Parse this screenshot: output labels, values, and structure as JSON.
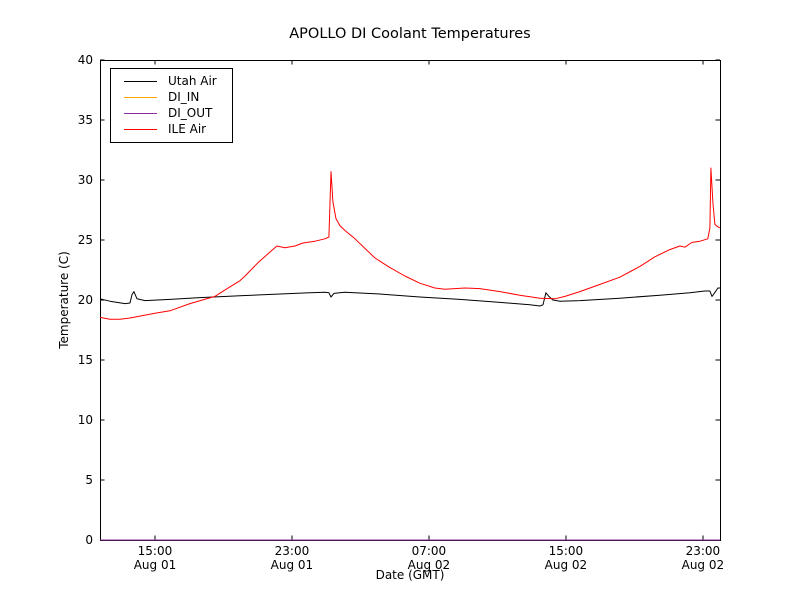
{
  "chart_data": {
    "type": "line",
    "title": "APOLLO DI Coolant Temperatures",
    "xlabel": "Date (GMT)",
    "ylabel": "Temperature (C)",
    "x_unit": "hours since Aug 01 00:00 GMT",
    "xlim": [
      11.79,
      48.0
    ],
    "ylim": [
      0,
      40
    ],
    "grid": false,
    "legend_position": "upper left",
    "yticks": [
      0,
      5,
      10,
      15,
      20,
      25,
      30,
      35,
      40
    ],
    "xticks": [
      {
        "value": 15,
        "label": "15:00\nAug 01"
      },
      {
        "value": 23,
        "label": "23:00\nAug 01"
      },
      {
        "value": 31,
        "label": "07:00\nAug 02"
      },
      {
        "value": 39,
        "label": "15:00\nAug 02"
      },
      {
        "value": 47,
        "label": "23:00\nAug 02"
      }
    ],
    "series": [
      {
        "name": "Utah Air",
        "color": "#000000",
        "points": [
          [
            11.79,
            20.1
          ],
          [
            12.37,
            19.9
          ],
          [
            13.25,
            19.7
          ],
          [
            13.54,
            19.75
          ],
          [
            13.66,
            20.45
          ],
          [
            13.77,
            20.7
          ],
          [
            13.95,
            20.1
          ],
          [
            14.42,
            19.95
          ],
          [
            15.88,
            20.05
          ],
          [
            17.63,
            20.2
          ],
          [
            19.96,
            20.35
          ],
          [
            22.3,
            20.5
          ],
          [
            24.05,
            20.6
          ],
          [
            24.93,
            20.65
          ],
          [
            25.16,
            20.6
          ],
          [
            25.28,
            20.25
          ],
          [
            25.45,
            20.55
          ],
          [
            26.09,
            20.65
          ],
          [
            28.14,
            20.5
          ],
          [
            30.47,
            20.25
          ],
          [
            32.81,
            20.05
          ],
          [
            35.15,
            19.8
          ],
          [
            36.9,
            19.6
          ],
          [
            37.48,
            19.5
          ],
          [
            37.66,
            19.6
          ],
          [
            37.83,
            20.6
          ],
          [
            38.01,
            20.3
          ],
          [
            38.24,
            20.0
          ],
          [
            38.66,
            19.9
          ],
          [
            39.82,
            19.95
          ],
          [
            42.15,
            20.15
          ],
          [
            44.49,
            20.4
          ],
          [
            46.25,
            20.6
          ],
          [
            47.12,
            20.75
          ],
          [
            47.41,
            20.75
          ],
          [
            47.53,
            20.3
          ],
          [
            47.64,
            20.5
          ],
          [
            47.88,
            21.0
          ],
          [
            48.0,
            21.0
          ]
        ]
      },
      {
        "name": "DI_IN",
        "color": "#ffa500",
        "points": [
          [
            11.79,
            0.0
          ],
          [
            48.0,
            0.0
          ]
        ]
      },
      {
        "name": "DI_OUT",
        "color": "#8a2d9e",
        "points": [
          [
            11.79,
            0.0
          ],
          [
            48.0,
            0.0
          ]
        ]
      },
      {
        "name": "ILE Air",
        "color": "#ff0000",
        "points": [
          [
            11.79,
            18.55
          ],
          [
            12.37,
            18.4
          ],
          [
            12.96,
            18.4
          ],
          [
            13.54,
            18.5
          ],
          [
            15.0,
            18.9
          ],
          [
            15.88,
            19.1
          ],
          [
            17.04,
            19.7
          ],
          [
            18.5,
            20.3
          ],
          [
            19.38,
            21.1
          ],
          [
            19.96,
            21.6
          ],
          [
            20.26,
            22.0
          ],
          [
            21.01,
            23.1
          ],
          [
            21.72,
            24.0
          ],
          [
            22.12,
            24.5
          ],
          [
            22.59,
            24.35
          ],
          [
            23.18,
            24.5
          ],
          [
            23.64,
            24.75
          ],
          [
            24.34,
            24.9
          ],
          [
            24.93,
            25.1
          ],
          [
            25.16,
            25.25
          ],
          [
            25.28,
            30.7
          ],
          [
            25.39,
            28.2
          ],
          [
            25.57,
            26.8
          ],
          [
            25.8,
            26.2
          ],
          [
            26.09,
            25.8
          ],
          [
            26.68,
            25.1
          ],
          [
            27.26,
            24.3
          ],
          [
            27.85,
            23.5
          ],
          [
            28.72,
            22.7
          ],
          [
            29.6,
            22.0
          ],
          [
            30.47,
            21.4
          ],
          [
            31.35,
            21.0
          ],
          [
            31.93,
            20.9
          ],
          [
            33.1,
            21.0
          ],
          [
            33.98,
            20.95
          ],
          [
            35.15,
            20.7
          ],
          [
            36.31,
            20.4
          ],
          [
            37.48,
            20.15
          ],
          [
            38.36,
            20.1
          ],
          [
            38.95,
            20.3
          ],
          [
            39.82,
            20.7
          ],
          [
            40.99,
            21.3
          ],
          [
            42.15,
            21.9
          ],
          [
            43.32,
            22.8
          ],
          [
            44.2,
            23.6
          ],
          [
            45.07,
            24.2
          ],
          [
            45.66,
            24.5
          ],
          [
            45.95,
            24.4
          ],
          [
            46.36,
            24.8
          ],
          [
            46.83,
            24.9
          ],
          [
            47.29,
            25.1
          ],
          [
            47.41,
            26.0
          ],
          [
            47.47,
            31.0
          ],
          [
            47.59,
            28.0
          ],
          [
            47.7,
            26.3
          ],
          [
            47.88,
            26.1
          ],
          [
            48.0,
            26.0
          ]
        ]
      }
    ]
  }
}
